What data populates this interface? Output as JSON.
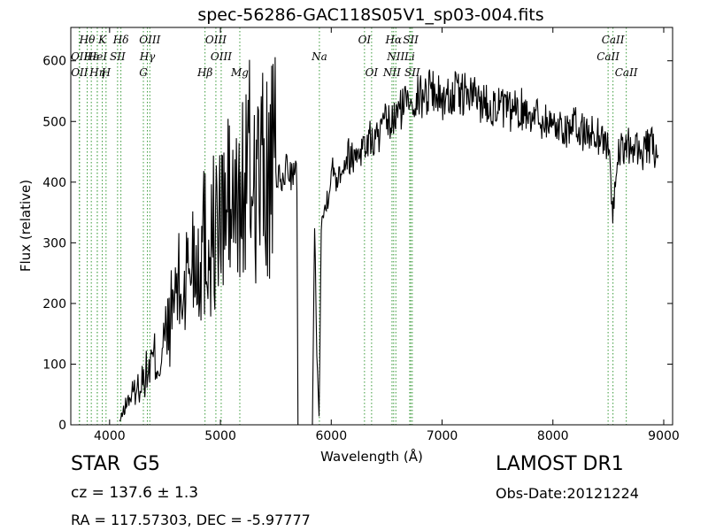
{
  "info": {
    "object_class": "STAR",
    "subclass": "G5",
    "redshift_text": "cz = 137.6 ± 1.3",
    "coords_text": "RA = 117.57303, DEC = -5.97777",
    "survey": "LAMOST DR1",
    "obs_date": "Obs-Date:20121224"
  },
  "chart_data": {
    "type": "line",
    "title": "spec-56286-GAC118S05V1_sp03-004.fits",
    "xlabel": "Wavelength (Å)",
    "ylabel": "Flux (relative)",
    "xlim": [
      3650,
      9080
    ],
    "ylim": [
      0,
      655
    ],
    "xticks": [
      4000,
      5000,
      6000,
      7000,
      8000,
      9000
    ],
    "yticks": [
      0,
      100,
      200,
      300,
      400,
      500,
      600
    ],
    "line_color": "#000000",
    "marker_color": "#3a9a3a",
    "spectrum": {
      "x": [
        4090,
        4150,
        4200,
        4250,
        4300,
        4350,
        4400,
        4450,
        4500,
        4550,
        4600,
        4650,
        4700,
        4750,
        4800,
        4850,
        4900,
        4950,
        5000,
        5050,
        5100,
        5150,
        5200,
        5250,
        5300,
        5350,
        5400,
        5450,
        5500,
        5550,
        5600,
        5650,
        5690,
        5700,
        5830,
        5850,
        5870,
        5890,
        5910,
        5930,
        5950,
        6000,
        6050,
        6100,
        6150,
        6200,
        6250,
        6300,
        6350,
        6400,
        6450,
        6500,
        6550,
        6600,
        6650,
        6700,
        6750,
        6800,
        6850,
        6900,
        6950,
        7000,
        7100,
        7200,
        7300,
        7400,
        7500,
        7600,
        7700,
        7800,
        7900,
        8000,
        8100,
        8200,
        8300,
        8400,
        8500,
        8540,
        8600,
        8700,
        8800,
        8900,
        8950
      ],
      "y": [
        5,
        35,
        50,
        60,
        75,
        90,
        110,
        100,
        140,
        170,
        230,
        210,
        250,
        290,
        275,
        310,
        300,
        320,
        330,
        360,
        360,
        345,
        380,
        420,
        410,
        415,
        400,
        405,
        420,
        390,
        430,
        410,
        410,
        0,
        0,
        330,
        120,
        15,
        335,
        345,
        360,
        420,
        410,
        430,
        445,
        440,
        455,
        460,
        470,
        470,
        480,
        500,
        495,
        515,
        525,
        545,
        540,
        540,
        545,
        560,
        545,
        535,
        545,
        545,
        540,
        530,
        525,
        515,
        520,
        515,
        505,
        495,
        490,
        490,
        480,
        480,
        460,
        355,
        450,
        460,
        450,
        460,
        445
      ]
    },
    "lines": [
      {
        "label": "Hθ",
        "x": 3798
      },
      {
        "label": "K",
        "x": 3934
      },
      {
        "label": "Hδ",
        "x": 4102
      },
      {
        "label": "OIII",
        "x": 4363
      },
      {
        "label": "OIII",
        "x": 4959
      },
      {
        "label": "OI",
        "x": 6300
      },
      {
        "label": "Hα",
        "x": 6563
      },
      {
        "label": "SII",
        "x": 6717
      },
      {
        "label": "CaII",
        "x": 8542
      },
      {
        "label": "OII",
        "x": 3727
      },
      {
        "label": "Hε",
        "x": 3835
      },
      {
        "label": "HeI",
        "x": 3889
      },
      {
        "label": "SII",
        "x": 4072
      },
      {
        "label": "Hγ",
        "x": 4341
      },
      {
        "label": "OIII",
        "x": 5007
      },
      {
        "label": "Na",
        "x": 5893
      },
      {
        "label": "NII",
        "x": 6583
      },
      {
        "label": "Li",
        "x": 6708
      },
      {
        "label": "CaII",
        "x": 8498
      },
      {
        "label": "OII",
        "x": 3729
      },
      {
        "label": "Hη",
        "x": 3889
      },
      {
        "label": "H",
        "x": 3968
      },
      {
        "label": "G",
        "x": 4305
      },
      {
        "label": "Hβ",
        "x": 4861
      },
      {
        "label": "Mg",
        "x": 5175
      },
      {
        "label": "OI",
        "x": 6364
      },
      {
        "label": "NII",
        "x": 6548
      },
      {
        "label": "SII",
        "x": 6731
      },
      {
        "label": "CaII",
        "x": 8662
      }
    ]
  }
}
